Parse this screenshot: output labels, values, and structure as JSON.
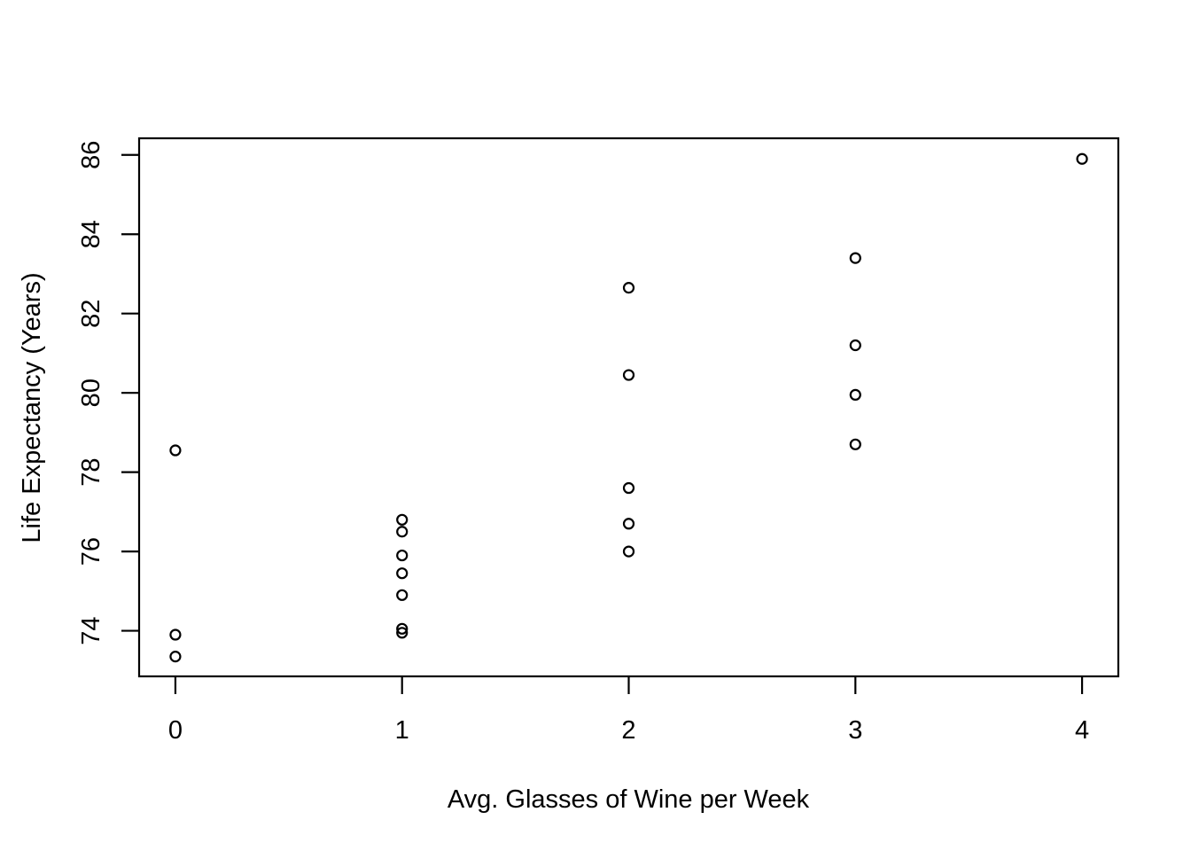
{
  "figure": {
    "background": "#ffffff"
  },
  "chart_data": {
    "type": "scatter",
    "title": "",
    "xlabel": "Avg. Glasses of Wine per Week",
    "ylabel": "Life Expectancy (Years)",
    "x_ticks": [
      0,
      1,
      2,
      3,
      4
    ],
    "y_ticks": [
      74,
      76,
      78,
      80,
      82,
      84,
      86
    ],
    "xlim": [
      -0.16,
      4.16
    ],
    "ylim": [
      72.85,
      86.42
    ],
    "grid": false,
    "legend": null,
    "marker": "open-circle",
    "colors": {
      "points": "#000000",
      "axis": "#000000",
      "background": "#ffffff"
    },
    "points": [
      {
        "x": 0,
        "y": 78.55
      },
      {
        "x": 0,
        "y": 73.9
      },
      {
        "x": 0,
        "y": 73.35
      },
      {
        "x": 1,
        "y": 76.8
      },
      {
        "x": 1,
        "y": 76.5
      },
      {
        "x": 1,
        "y": 75.9
      },
      {
        "x": 1,
        "y": 75.45
      },
      {
        "x": 1,
        "y": 74.9
      },
      {
        "x": 1,
        "y": 74.05
      },
      {
        "x": 1,
        "y": 73.95
      },
      {
        "x": 2,
        "y": 82.65
      },
      {
        "x": 2,
        "y": 80.45
      },
      {
        "x": 2,
        "y": 77.6
      },
      {
        "x": 2,
        "y": 76.7
      },
      {
        "x": 2,
        "y": 76.0
      },
      {
        "x": 3,
        "y": 83.4
      },
      {
        "x": 3,
        "y": 81.2
      },
      {
        "x": 3,
        "y": 79.95
      },
      {
        "x": 3,
        "y": 78.7
      },
      {
        "x": 4,
        "y": 85.9
      }
    ]
  }
}
